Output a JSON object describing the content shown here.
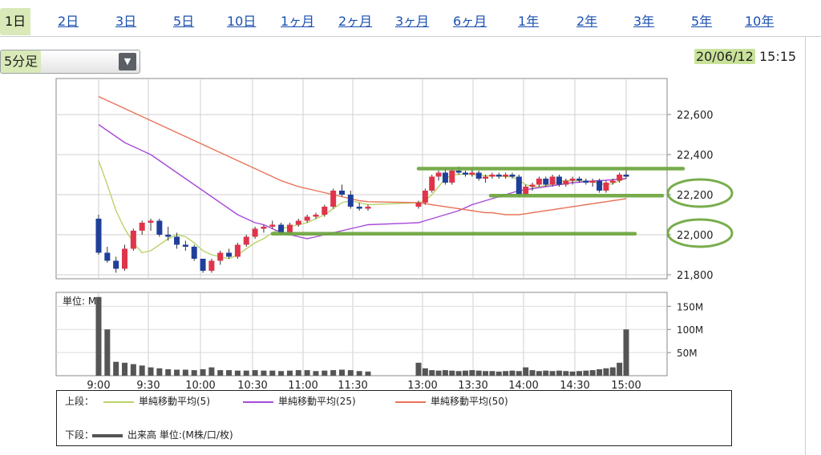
{
  "tabs": [
    {
      "label": "1日",
      "active": true
    },
    {
      "label": "2日"
    },
    {
      "label": "3日"
    },
    {
      "label": "5日"
    },
    {
      "label": "10日"
    },
    {
      "label": "1ヶ月"
    },
    {
      "label": "2ヶ月"
    },
    {
      "label": "3ヶ月"
    },
    {
      "label": "6ヶ月"
    },
    {
      "label": "1年"
    },
    {
      "label": "2年"
    },
    {
      "label": "3年"
    },
    {
      "label": "5年"
    },
    {
      "label": "10年"
    }
  ],
  "interval_select": {
    "value": "5分足"
  },
  "datetime": {
    "date": "20/06/12",
    "time": "15:15"
  },
  "chart_data": {
    "type": "candlestick",
    "price_axis": {
      "ticks": [
        "22,600",
        "22,400",
        "22,200",
        "22,000",
        "21,800"
      ],
      "tick_values": [
        22600,
        22400,
        22200,
        22000,
        21800
      ],
      "ylim": [
        21780,
        22780
      ]
    },
    "x_tick_labels": [
      "9:00",
      "9:30",
      "10:00",
      "10:30",
      "11:00",
      "11:30",
      "13:00",
      "13:30",
      "14:00",
      "14:30",
      "15:00"
    ],
    "grid": true,
    "colors": {
      "up": "#e0344a",
      "down": "#1f3f9a",
      "ma5": "#b9d36a",
      "ma25": "#a64ad6",
      "ma50": "#e8735a",
      "volume": "#555555",
      "annotation": "#6aa43a"
    },
    "candles": {
      "morning": [
        {
          "o": 22080,
          "h": 22100,
          "l": 21900,
          "c": 21910
        },
        {
          "o": 21910,
          "h": 21940,
          "l": 21860,
          "c": 21870
        },
        {
          "o": 21870,
          "h": 21890,
          "l": 21810,
          "c": 21830
        },
        {
          "o": 21830,
          "h": 21950,
          "l": 21820,
          "c": 21930
        },
        {
          "o": 21930,
          "h": 22030,
          "l": 21920,
          "c": 22020
        },
        {
          "o": 22020,
          "h": 22070,
          "l": 22000,
          "c": 22060
        },
        {
          "o": 22060,
          "h": 22080,
          "l": 22020,
          "c": 22070
        },
        {
          "o": 22070,
          "h": 22080,
          "l": 21990,
          "c": 22000
        },
        {
          "o": 22000,
          "h": 22040,
          "l": 21970,
          "c": 21990
        },
        {
          "o": 21990,
          "h": 22010,
          "l": 21930,
          "c": 21950
        },
        {
          "o": 21950,
          "h": 21970,
          "l": 21920,
          "c": 21940
        },
        {
          "o": 21940,
          "h": 21950,
          "l": 21870,
          "c": 21880
        },
        {
          "o": 21880,
          "h": 21880,
          "l": 21810,
          "c": 21820
        },
        {
          "o": 21820,
          "h": 21880,
          "l": 21810,
          "c": 21870
        },
        {
          "o": 21870,
          "h": 21920,
          "l": 21850,
          "c": 21910
        },
        {
          "o": 21910,
          "h": 21930,
          "l": 21880,
          "c": 21890
        },
        {
          "o": 21890,
          "h": 21960,
          "l": 21880,
          "c": 21950
        },
        {
          "o": 21950,
          "h": 22000,
          "l": 21940,
          "c": 21990
        },
        {
          "o": 21990,
          "h": 22040,
          "l": 21980,
          "c": 22030
        },
        {
          "o": 22030,
          "h": 22050,
          "l": 22010,
          "c": 22040
        },
        {
          "o": 22040,
          "h": 22070,
          "l": 22030,
          "c": 22050
        },
        {
          "o": 22050,
          "h": 22060,
          "l": 22000,
          "c": 22010
        },
        {
          "o": 22010,
          "h": 22060,
          "l": 22000,
          "c": 22050
        },
        {
          "o": 22050,
          "h": 22080,
          "l": 22040,
          "c": 22070
        },
        {
          "o": 22070,
          "h": 22100,
          "l": 22060,
          "c": 22090
        },
        {
          "o": 22090,
          "h": 22110,
          "l": 22080,
          "c": 22100
        },
        {
          "o": 22100,
          "h": 22150,
          "l": 22090,
          "c": 22140
        },
        {
          "o": 22140,
          "h": 22230,
          "l": 22130,
          "c": 22220
        },
        {
          "o": 22220,
          "h": 22250,
          "l": 22190,
          "c": 22200
        },
        {
          "o": 22200,
          "h": 22220,
          "l": 22130,
          "c": 22140
        },
        {
          "o": 22140,
          "h": 22160,
          "l": 22120,
          "c": 22130
        },
        {
          "o": 22130,
          "h": 22150,
          "l": 22120,
          "c": 22140
        }
      ],
      "afternoon": [
        {
          "o": 22140,
          "h": 22170,
          "l": 22130,
          "c": 22160
        },
        {
          "o": 22160,
          "h": 22230,
          "l": 22150,
          "c": 22220
        },
        {
          "o": 22220,
          "h": 22300,
          "l": 22210,
          "c": 22290
        },
        {
          "o": 22290,
          "h": 22320,
          "l": 22270,
          "c": 22310
        },
        {
          "o": 22310,
          "h": 22330,
          "l": 22250,
          "c": 22260
        },
        {
          "o": 22260,
          "h": 22330,
          "l": 22250,
          "c": 22320
        },
        {
          "o": 22320,
          "h": 22340,
          "l": 22300,
          "c": 22310
        },
        {
          "o": 22310,
          "h": 22320,
          "l": 22290,
          "c": 22300
        },
        {
          "o": 22300,
          "h": 22330,
          "l": 22290,
          "c": 22310
        },
        {
          "o": 22310,
          "h": 22320,
          "l": 22270,
          "c": 22280
        },
        {
          "o": 22280,
          "h": 22300,
          "l": 22260,
          "c": 22290
        },
        {
          "o": 22290,
          "h": 22310,
          "l": 22280,
          "c": 22300
        },
        {
          "o": 22300,
          "h": 22310,
          "l": 22280,
          "c": 22290
        },
        {
          "o": 22290,
          "h": 22310,
          "l": 22280,
          "c": 22300
        },
        {
          "o": 22300,
          "h": 22310,
          "l": 22280,
          "c": 22290
        },
        {
          "o": 22290,
          "h": 22300,
          "l": 22190,
          "c": 22200
        },
        {
          "o": 22200,
          "h": 22250,
          "l": 22190,
          "c": 22240
        },
        {
          "o": 22240,
          "h": 22260,
          "l": 22220,
          "c": 22250
        },
        {
          "o": 22250,
          "h": 22290,
          "l": 22240,
          "c": 22280
        },
        {
          "o": 22280,
          "h": 22290,
          "l": 22240,
          "c": 22250
        },
        {
          "o": 22250,
          "h": 22300,
          "l": 22240,
          "c": 22290
        },
        {
          "o": 22290,
          "h": 22300,
          "l": 22240,
          "c": 22250
        },
        {
          "o": 22250,
          "h": 22280,
          "l": 22240,
          "c": 22270
        },
        {
          "o": 22270,
          "h": 22290,
          "l": 22250,
          "c": 22280
        },
        {
          "o": 22280,
          "h": 22290,
          "l": 22260,
          "c": 22270
        },
        {
          "o": 22270,
          "h": 22280,
          "l": 22250,
          "c": 22260
        },
        {
          "o": 22260,
          "h": 22280,
          "l": 22240,
          "c": 22270
        },
        {
          "o": 22270,
          "h": 22280,
          "l": 22210,
          "c": 22220
        },
        {
          "o": 22220,
          "h": 22270,
          "l": 22210,
          "c": 22260
        },
        {
          "o": 22260,
          "h": 22280,
          "l": 22250,
          "c": 22270
        },
        {
          "o": 22270,
          "h": 22310,
          "l": 22260,
          "c": 22300
        },
        {
          "o": 22300,
          "h": 22330,
          "l": 22280,
          "c": 22290
        }
      ]
    },
    "moving_averages": [
      {
        "name": "単純移動平均(5)",
        "values_morning": [
          22370,
          22250,
          22120,
          22030,
          21960,
          21910,
          21920,
          21950,
          21980,
          22000,
          21990,
          21960,
          21920,
          21900,
          21890,
          21880,
          21900,
          21930,
          21960,
          21980,
          22010,
          22030,
          22040,
          22050,
          22060,
          22080,
          22100,
          22130,
          22160,
          22170,
          22160,
          22150
        ],
        "values_afternoon": [
          22160,
          22170,
          22200,
          22240,
          22280,
          22300,
          22300,
          22305,
          22300,
          22300,
          22295,
          22295,
          22295,
          22290,
          22290,
          22270,
          22250,
          22240,
          22240,
          22245,
          22255,
          22265,
          22270,
          22270,
          22270,
          22265,
          22265,
          22255,
          22250,
          22255,
          22270,
          22280
        ]
      },
      {
        "name": "単純移動平均(25)",
        "values_morning": [
          22550,
          22520,
          22490,
          22460,
          22440,
          22420,
          22400,
          22370,
          22340,
          22310,
          22280,
          22250,
          22220,
          22190,
          22160,
          22130,
          22100,
          22080,
          22060,
          22050,
          22030,
          22010,
          22000,
          21990,
          21980,
          21990,
          22000,
          22010,
          22020,
          22030,
          22040,
          22050
        ],
        "values_afternoon": [
          22060,
          22070,
          22080,
          22090,
          22100,
          22110,
          22120,
          22135,
          22150,
          22160,
          22170,
          22180,
          22190,
          22200,
          22210,
          22220,
          22225,
          22230,
          22235,
          22240,
          22245,
          22250,
          22255,
          22260,
          22262,
          22265,
          22268,
          22270,
          22272,
          22275,
          22278,
          22280
        ]
      },
      {
        "name": "単純移動平均(50)",
        "values_morning": [
          22690,
          22670,
          22650,
          22630,
          22610,
          22590,
          22570,
          22550,
          22530,
          22510,
          22490,
          22470,
          22450,
          22430,
          22410,
          22390,
          22370,
          22350,
          22330,
          22310,
          22290,
          22270,
          22255,
          22240,
          22230,
          22220,
          22210,
          22200,
          22190,
          22180,
          22170,
          22165
        ],
        "values_afternoon": [
          22160,
          22155,
          22150,
          22145,
          22140,
          22135,
          22130,
          22125,
          22120,
          22115,
          22110,
          22110,
          22105,
          22100,
          22100,
          22100,
          22105,
          22110,
          22115,
          22120,
          22125,
          22130,
          22135,
          22140,
          22145,
          22150,
          22155,
          22160,
          22165,
          22170,
          22175,
          22180
        ]
      }
    ],
    "volume": {
      "unit_label": "単位: M",
      "ticks": [
        "150M",
        "100M",
        "50M"
      ],
      "tick_values": [
        150,
        100,
        50
      ],
      "ylim": [
        0,
        180
      ],
      "values_morning": [
        170,
        100,
        30,
        28,
        25,
        22,
        18,
        16,
        14,
        13,
        13,
        12,
        14,
        18,
        12,
        12,
        11,
        11,
        12,
        11,
        11,
        10,
        11,
        12,
        12,
        10,
        11,
        12,
        13,
        12,
        10,
        9
      ],
      "values_afternoon": [
        28,
        16,
        12,
        11,
        12,
        11,
        10,
        11,
        12,
        11,
        10,
        10,
        9,
        10,
        11,
        10,
        18,
        12,
        10,
        11,
        10,
        11,
        10,
        9,
        10,
        11,
        12,
        14,
        16,
        18,
        28,
        100
      ]
    },
    "annotations": {
      "hlines": [
        {
          "value": 22330
        },
        {
          "value": 22195
        },
        {
          "value": 22005
        }
      ],
      "circled_ticks": [
        "22,200",
        "22,000"
      ]
    }
  },
  "legend": {
    "upper_label": "上段：",
    "upper_items": [
      "単純移動平均(5)",
      "単純移動平均(25)",
      "単純移動平均(50)"
    ],
    "lower_label": "下段：",
    "lower_item": "出来高 単位:(M株/口/枚)"
  }
}
